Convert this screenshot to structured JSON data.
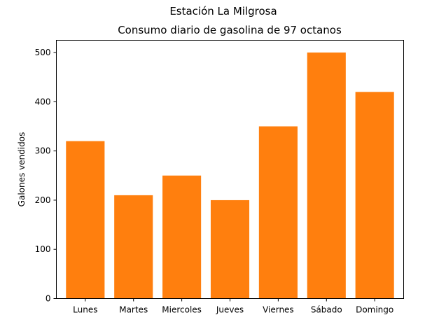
{
  "figure": {
    "suptitle": "Estación La Milgrosa"
  },
  "chart_data": {
    "type": "bar",
    "title": "Consumo diario de gasolina de 97 octanos",
    "xlabel": "",
    "ylabel": "Galones vendidos",
    "categories": [
      "Lunes",
      "Martes",
      "Miercoles",
      "Jueves",
      "Viernes",
      "Sábado",
      "Domingo"
    ],
    "values": [
      320,
      210,
      250,
      200,
      350,
      500,
      420
    ],
    "ylim": [
      0,
      525
    ],
    "yticks": [
      0,
      100,
      200,
      300,
      400,
      500
    ],
    "bar_color": "#ff7f0e",
    "grid": false,
    "legend": "none"
  }
}
